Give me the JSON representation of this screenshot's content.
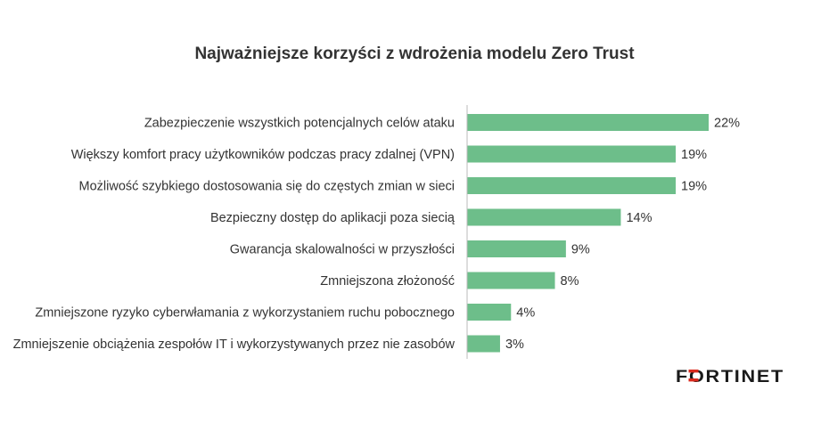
{
  "chart_data": {
    "type": "bar",
    "orientation": "horizontal",
    "title": "Najważniejsze korzyści z wdrożenia modelu Zero Trust",
    "categories": [
      "Zabezpieczenie wszystkich potencjalnych celów ataku",
      "Większy komfort pracy użytkowników podczas pracy zdalnej (VPN)",
      "Możliwość szybkiego dostosowania się do częstych zmian w sieci",
      "Bezpieczny dostęp do aplikacji poza siecią",
      "Gwarancja skalowalności w przyszłości",
      "Zmniejszona złożoność",
      "Zmniejszone ryzyko cyberwłamania z wykorzystaniem ruchu pobocznego",
      "Zmniejszenie obciążenia zespołów IT i wykorzystywanych przez nie zasobów"
    ],
    "values": [
      22,
      19,
      19,
      14,
      9,
      8,
      4,
      3
    ],
    "value_labels": [
      "22%",
      "19%",
      "19%",
      "14%",
      "9%",
      "8%",
      "4%",
      "3%"
    ],
    "xlabel": "",
    "ylabel": "",
    "xlim": [
      0,
      22
    ],
    "grid": false,
    "bar_color": "#6dbe8a",
    "axis_color": "#bbbbbb",
    "text_color": "#333333"
  },
  "brand": {
    "name": "FORTINET",
    "logo_color": "#1a1a1a",
    "logo_accent": "#da291c"
  }
}
